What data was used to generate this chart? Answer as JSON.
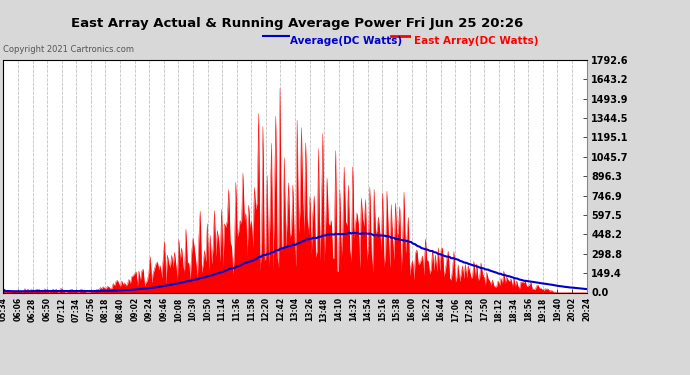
{
  "title": "East Array Actual & Running Average Power Fri Jun 25 20:26",
  "copyright": "Copyright 2021 Cartronics.com",
  "legend_average": "Average(DC Watts)",
  "legend_east": "East Array(DC Watts)",
  "ymin": 0.0,
  "ymax": 1792.6,
  "yticks": [
    0.0,
    149.4,
    298.8,
    448.2,
    597.5,
    746.9,
    896.3,
    1045.7,
    1195.1,
    1344.5,
    1493.9,
    1643.2,
    1792.6
  ],
  "ytick_labels": [
    "0.0",
    "149.4",
    "298.8",
    "448.2",
    "597.5",
    "746.9",
    "896.3",
    "1045.7",
    "1195.1",
    "1344.5",
    "1493.9",
    "1643.2",
    "1792.6"
  ],
  "background_color": "#d8d8d8",
  "plot_bg_color": "#ffffff",
  "title_color": "#000000",
  "avg_line_color": "#0000cc",
  "east_fill_color": "#ff0000",
  "xtick_labels": [
    "05:34",
    "06:06",
    "06:28",
    "06:50",
    "07:12",
    "07:34",
    "07:56",
    "08:18",
    "08:40",
    "09:02",
    "09:24",
    "09:46",
    "10:08",
    "10:30",
    "10:50",
    "11:14",
    "11:36",
    "11:58",
    "12:20",
    "12:42",
    "13:04",
    "13:26",
    "13:48",
    "14:10",
    "14:32",
    "14:54",
    "15:16",
    "15:38",
    "16:00",
    "16:22",
    "16:44",
    "17:06",
    "17:28",
    "17:50",
    "18:12",
    "18:34",
    "18:56",
    "19:18",
    "19:40",
    "20:02",
    "20:24"
  ],
  "n_points": 410
}
